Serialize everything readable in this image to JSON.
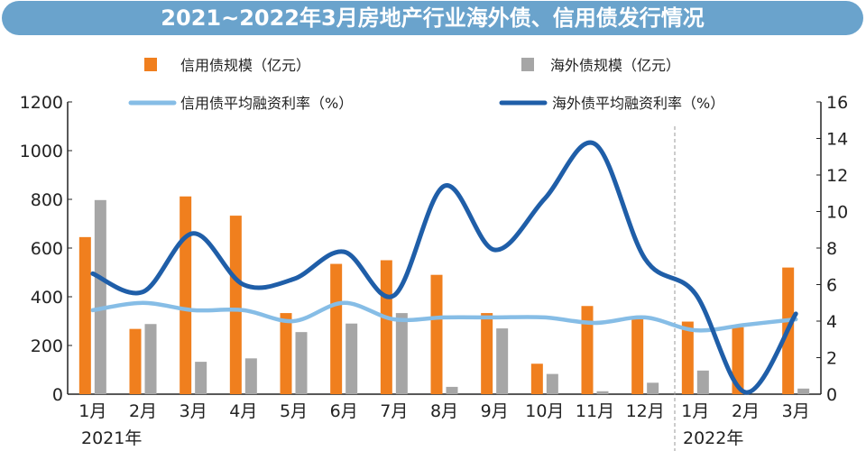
{
  "title": "2021~2022年3月房地产行业海外债、信用债发行情况",
  "colors": {
    "title_bg": "#6aa3cc",
    "credit_bar": "#f07f1e",
    "overseas_bar": "#a6a6a6",
    "credit_rate_line": "#86bde6",
    "overseas_rate_line": "#1f5ea8"
  },
  "chart_data": {
    "type": "bar",
    "categories": [
      "1月",
      "2月",
      "3月",
      "4月",
      "5月",
      "6月",
      "7月",
      "8月",
      "9月",
      "10月",
      "11月",
      "12月",
      "1月",
      "2月",
      "3月"
    ],
    "year_labels": [
      "2021年",
      "2022年"
    ],
    "series": [
      {
        "name": "信用债规模（亿元）",
        "type": "bar",
        "axis": "left",
        "values": [
          645,
          268,
          812,
          733,
          333,
          535,
          550,
          490,
          333,
          125,
          362,
          310,
          298,
          275,
          520
        ]
      },
      {
        "name": "海外债规模（亿元）",
        "type": "bar",
        "axis": "left",
        "values": [
          797,
          288,
          133,
          147,
          255,
          290,
          333,
          30,
          270,
          83,
          12,
          47,
          97,
          0,
          23
        ]
      },
      {
        "name": "信用债平均融资利率（%）",
        "type": "line",
        "axis": "right",
        "values": [
          4.6,
          5.0,
          4.6,
          4.6,
          4.0,
          5.0,
          4.1,
          4.2,
          4.2,
          4.2,
          3.9,
          4.2,
          3.5,
          3.8,
          4.1
        ]
      },
      {
        "name": "海外债平均融资利率（%）",
        "type": "line",
        "axis": "right",
        "values": [
          6.6,
          5.6,
          8.8,
          6.0,
          6.3,
          7.8,
          5.4,
          11.4,
          7.9,
          10.7,
          13.7,
          7.4,
          5.5,
          0.1,
          4.4
        ]
      }
    ],
    "ylim_left": [
      0,
      1200
    ],
    "yticks_left": [
      "0",
      "200",
      "400",
      "600",
      "800",
      "1000",
      "1200"
    ],
    "ylim_right": [
      0,
      16
    ],
    "yticks_right": [
      "0",
      "2",
      "4",
      "6",
      "8",
      "10",
      "12",
      "14",
      "16"
    ],
    "grid": false,
    "legend_position": "top"
  }
}
